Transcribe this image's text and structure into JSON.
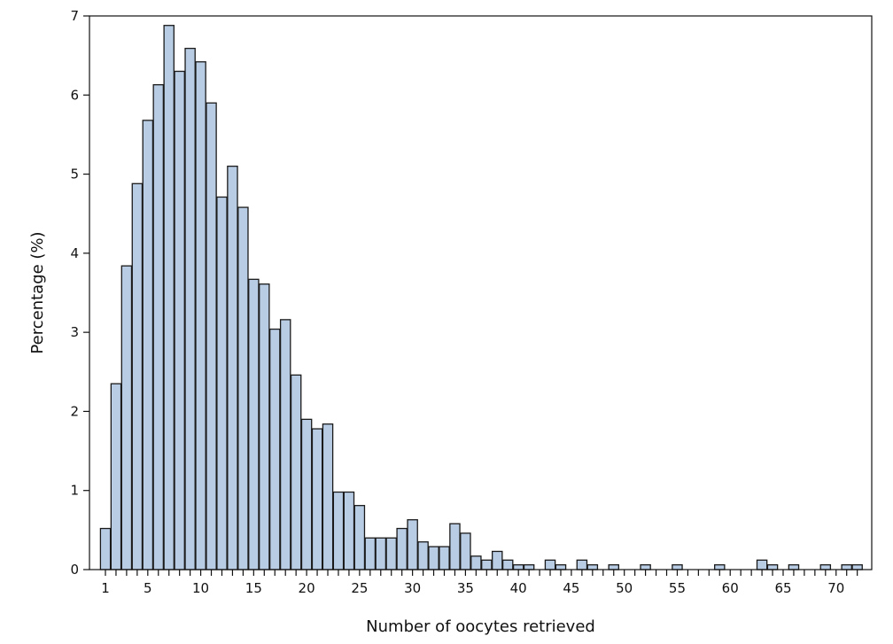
{
  "chart_data": {
    "type": "bar",
    "title": "",
    "xlabel": "Number of oocytes retrieved",
    "ylabel": "Percentage (%)",
    "ylim": [
      0,
      7
    ],
    "y_ticks": [
      0,
      1,
      2,
      3,
      4,
      5,
      6,
      7
    ],
    "x_tick_labels": [
      1,
      5,
      10,
      15,
      20,
      25,
      30,
      35,
      40,
      45,
      50,
      55,
      60,
      65,
      70
    ],
    "x": [
      1,
      2,
      3,
      4,
      5,
      6,
      7,
      8,
      9,
      10,
      11,
      12,
      13,
      14,
      15,
      16,
      17,
      18,
      19,
      20,
      21,
      22,
      23,
      24,
      25,
      26,
      27,
      28,
      29,
      30,
      31,
      32,
      33,
      34,
      35,
      36,
      37,
      38,
      39,
      40,
      41,
      42,
      43,
      44,
      45,
      46,
      47,
      48,
      49,
      50,
      51,
      52,
      53,
      54,
      55,
      56,
      57,
      58,
      59,
      60,
      61,
      62,
      63,
      64,
      65,
      66,
      67,
      68,
      69,
      70,
      71,
      72
    ],
    "values": [
      0.52,
      2.35,
      3.84,
      4.88,
      5.68,
      6.13,
      6.88,
      6.3,
      6.59,
      6.42,
      5.9,
      4.71,
      5.1,
      4.58,
      3.67,
      3.61,
      3.04,
      3.16,
      2.46,
      1.9,
      1.78,
      1.84,
      0.98,
      0.98,
      0.81,
      0.4,
      0.4,
      0.4,
      0.52,
      0.63,
      0.35,
      0.29,
      0.29,
      0.58,
      0.46,
      0.17,
      0.12,
      0.23,
      0.12,
      0.06,
      0.06,
      0,
      0.12,
      0.06,
      0,
      0.12,
      0.06,
      0,
      0.06,
      0,
      0,
      0.06,
      0,
      0,
      0.06,
      0,
      0,
      0,
      0.06,
      0,
      0,
      0,
      0.12,
      0.06,
      0,
      0.06,
      0,
      0,
      0.06,
      0,
      0.06,
      0.06
    ],
    "bar_color": "#b8cce4",
    "bar_edge_color": "#1a1a1a",
    "grid": false,
    "legend": "none"
  }
}
